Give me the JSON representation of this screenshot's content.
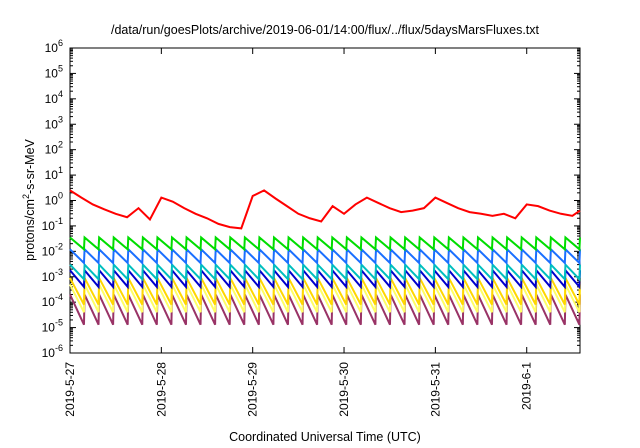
{
  "chart_data": {
    "type": "line",
    "title": "/data/run/goesPlots/archive/2019-06-01/14:00/flux/../flux/5daysMarsFluxes.txt",
    "xlabel": "Coordinated Universal Time (UTC)",
    "ylabel": "protons/cm2-s-sr-MeV",
    "ylabel_parts": [
      "protons/cm",
      "2",
      "-s-sr-MeV"
    ],
    "xscale": "time",
    "yscale": "log",
    "xlim": [
      "2019-05-27T00:00",
      "2019-06-01T14:00"
    ],
    "ylim": [
      1e-06,
      1000000.0
    ],
    "yticks": [
      {
        "value": 1e-06,
        "base": "10",
        "exp": "-6"
      },
      {
        "value": 1e-05,
        "base": "10",
        "exp": "-5"
      },
      {
        "value": 0.0001,
        "base": "10",
        "exp": "-4"
      },
      {
        "value": 0.001,
        "base": "10",
        "exp": "-3"
      },
      {
        "value": 0.01,
        "base": "10",
        "exp": "-2"
      },
      {
        "value": 0.1,
        "base": "10",
        "exp": "-1"
      },
      {
        "value": 1,
        "base": "10",
        "exp": "0"
      },
      {
        "value": 10.0,
        "base": "10",
        "exp": "1"
      },
      {
        "value": 100.0,
        "base": "10",
        "exp": "2"
      },
      {
        "value": 1000.0,
        "base": "10",
        "exp": "3"
      },
      {
        "value": 10000.0,
        "base": "10",
        "exp": "4"
      },
      {
        "value": 100000.0,
        "base": "10",
        "exp": "5"
      },
      {
        "value": 1000000.0,
        "base": "10",
        "exp": "6"
      }
    ],
    "xticks": [
      {
        "value": "2019-05-27T00:00",
        "label": "2019-5-27"
      },
      {
        "value": "2019-05-28T00:00",
        "label": "2019-5-28"
      },
      {
        "value": "2019-05-29T00:00",
        "label": "2019-5-29"
      },
      {
        "value": "2019-05-30T00:00",
        "label": "2019-5-30"
      },
      {
        "value": "2019-05-31T00:00",
        "label": "2019-5-31"
      },
      {
        "value": "2019-06-01T00:00",
        "label": "2019-6-1"
      }
    ],
    "grid": false,
    "legend": "none",
    "series": [
      {
        "color": "#ff0000",
        "sawtooth": false,
        "x": [
          "2019-05-27T00:00",
          "2019-05-27T03:00",
          "2019-05-27T06:00",
          "2019-05-27T09:00",
          "2019-05-27T12:00",
          "2019-05-27T15:00",
          "2019-05-27T18:00",
          "2019-05-27T21:00",
          "2019-05-28T00:00",
          "2019-05-28T03:00",
          "2019-05-28T06:00",
          "2019-05-28T09:00",
          "2019-05-28T12:00",
          "2019-05-28T15:00",
          "2019-05-28T18:00",
          "2019-05-28T21:00",
          "2019-05-29T00:00",
          "2019-05-29T03:00",
          "2019-05-29T06:00",
          "2019-05-29T09:00",
          "2019-05-29T12:00",
          "2019-05-29T15:00",
          "2019-05-29T18:00",
          "2019-05-29T21:00",
          "2019-05-30T00:00",
          "2019-05-30T03:00",
          "2019-05-30T06:00",
          "2019-05-30T09:00",
          "2019-05-30T12:00",
          "2019-05-30T15:00",
          "2019-05-30T18:00",
          "2019-05-30T21:00",
          "2019-05-31T00:00",
          "2019-05-31T03:00",
          "2019-05-31T06:00",
          "2019-05-31T09:00",
          "2019-05-31T12:00",
          "2019-05-31T15:00",
          "2019-05-31T18:00",
          "2019-05-31T21:00",
          "2019-06-01T00:00",
          "2019-06-01T03:00",
          "2019-06-01T06:00",
          "2019-06-01T09:00",
          "2019-06-01T12:00",
          "2019-06-01T14:00"
        ],
        "y": [
          2.5,
          1.3,
          0.7,
          0.45,
          0.3,
          0.22,
          0.5,
          0.18,
          1.3,
          0.9,
          0.5,
          0.3,
          0.2,
          0.12,
          0.09,
          0.08,
          1.5,
          2.5,
          1.2,
          0.6,
          0.3,
          0.2,
          0.15,
          0.6,
          0.3,
          0.7,
          1.3,
          0.8,
          0.5,
          0.35,
          0.4,
          0.5,
          1.3,
          0.8,
          0.5,
          0.35,
          0.3,
          0.25,
          0.3,
          0.2,
          0.7,
          0.6,
          0.4,
          0.3,
          0.25,
          0.4
        ]
      },
      {
        "color": "#00dd00",
        "sawtooth": true,
        "peaks": 35,
        "peak": 0.035,
        "trough": 0.012
      },
      {
        "color": "#1a6fff",
        "sawtooth": true,
        "peaks": 35,
        "peak": 0.012,
        "trough": 0.0035
      },
      {
        "color": "#00bfbf",
        "sawtooth": true,
        "peaks": 35,
        "peak": 0.003,
        "trough": 0.0008
      },
      {
        "color": "#0000cc",
        "sawtooth": true,
        "peaks": 35,
        "peak": 0.0018,
        "trough": 0.0004
      },
      {
        "color": "#ffd700",
        "sawtooth": true,
        "peaks": 35,
        "peak": 0.0009,
        "trough": 8e-05
      },
      {
        "color": "#ffff66",
        "sawtooth": true,
        "peaks": 35,
        "peak": 0.0005,
        "trough": 4e-05
      },
      {
        "color": "#993366",
        "sawtooth": true,
        "peaks": 35,
        "peak": 0.0002,
        "trough": 1.3e-05
      }
    ]
  }
}
